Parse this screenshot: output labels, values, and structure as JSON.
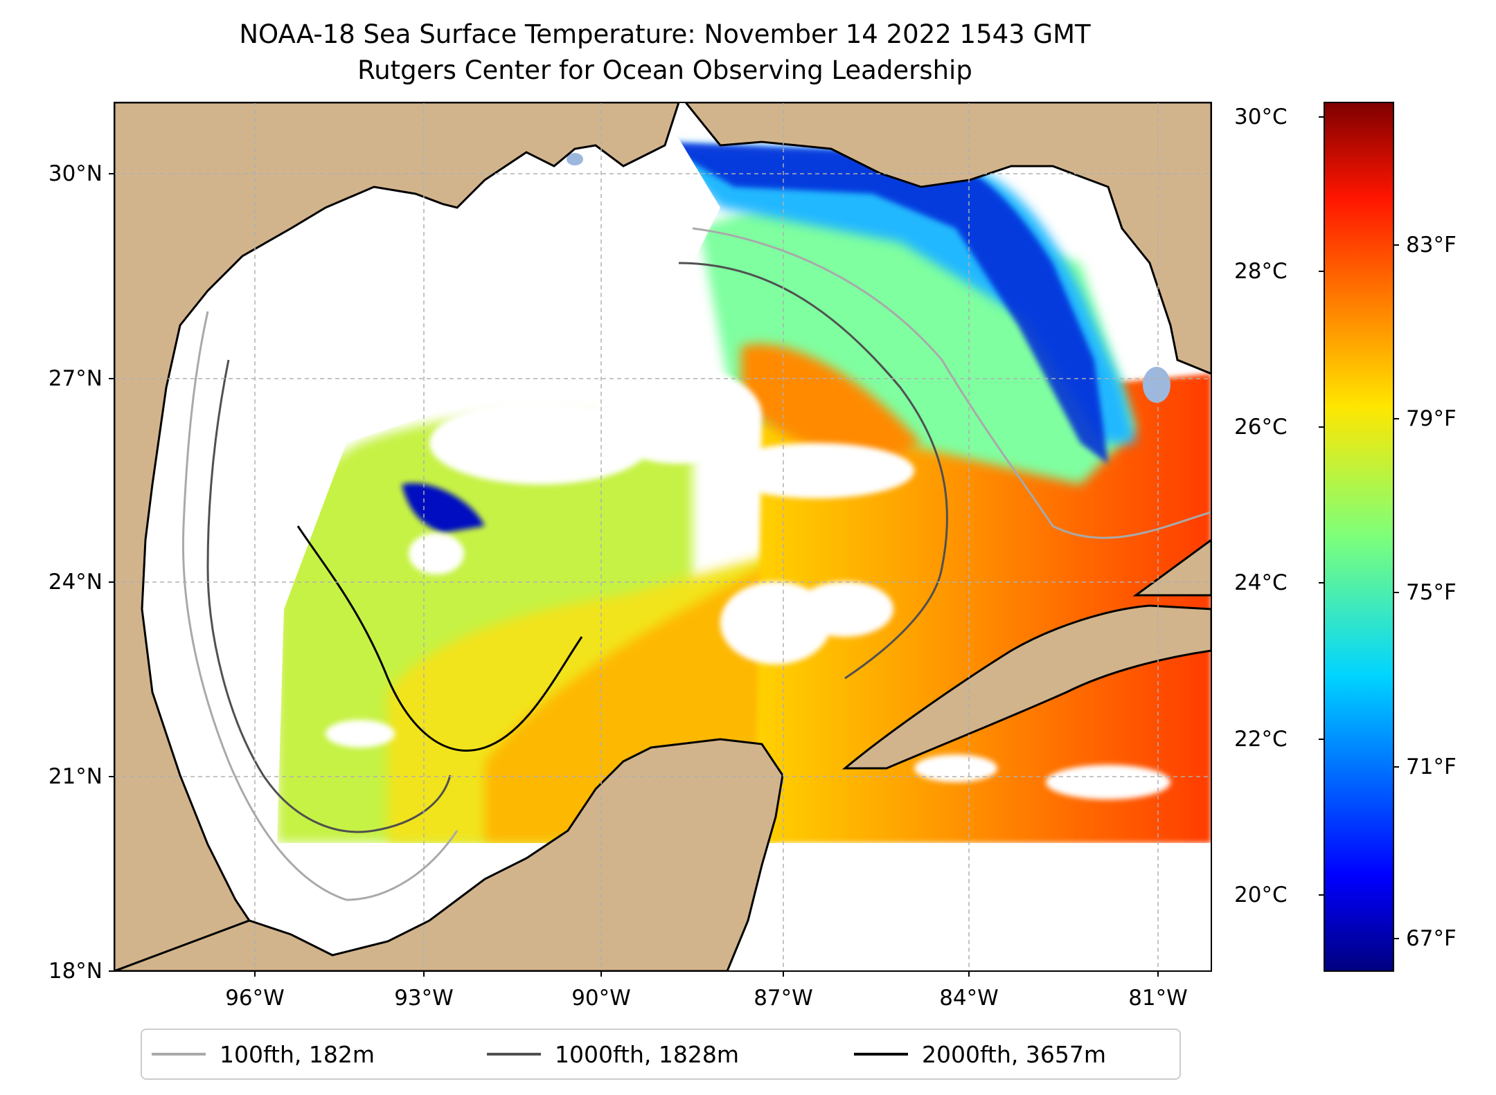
{
  "title": {
    "line1": "NOAA-18 Sea Surface Temperature: November 14 2022 1543 GMT",
    "line2": "Rutgers Center for Ocean Observing Leadership"
  },
  "map": {
    "lat_labels": [
      "30°N",
      "27°N",
      "24°N",
      "21°N",
      "18°N"
    ],
    "lon_labels": [
      "96°W",
      "93°W",
      "90°W",
      "87°W",
      "84°W",
      "81°W"
    ],
    "lat_range": [
      18,
      30.8
    ],
    "lon_range": [
      -98.3,
      -80.5
    ],
    "colors": {
      "land": "#d2b48c",
      "ocean_nodata": "#ffffff",
      "lakes": "#9db8de",
      "grid": "#b0b0b0"
    }
  },
  "colorbar": {
    "celsius_labels": [
      "30°C",
      "28°C",
      "26°C",
      "24°C",
      "22°C",
      "20°C"
    ],
    "fahrenheit_labels": [
      "83°F",
      "79°F",
      "75°F",
      "71°F",
      "67°F"
    ],
    "range_c": [
      19,
      30.2
    ],
    "colormap": "jet"
  },
  "legend": [
    {
      "label": "100fth, 182m",
      "color": "#a9a9a9"
    },
    {
      "label": "1000fth, 1828m",
      "color": "#505050"
    },
    {
      "label": "2000fth, 3657m",
      "color": "#000000"
    }
  ]
}
